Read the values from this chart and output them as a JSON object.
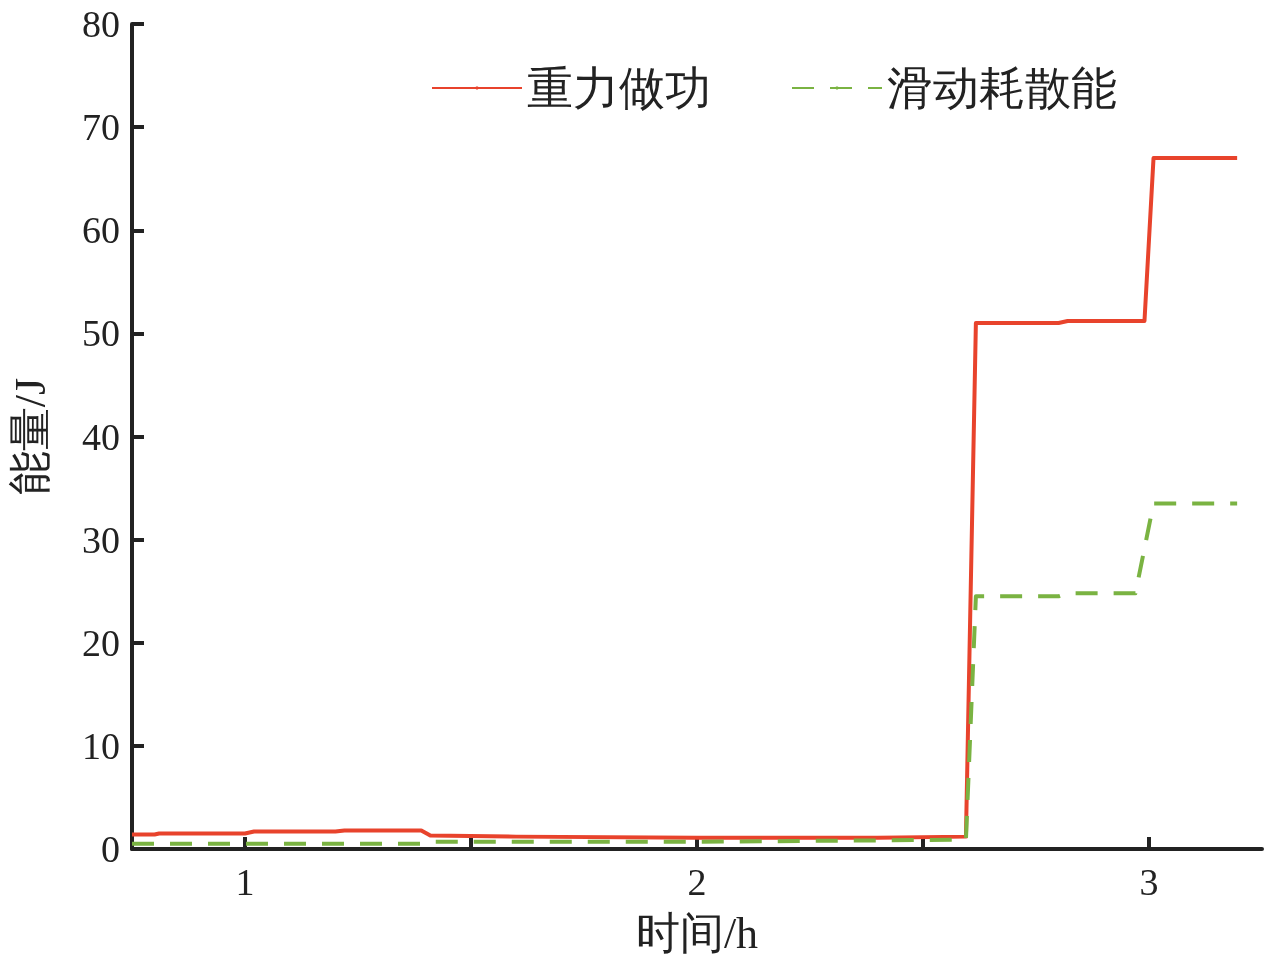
{
  "chart_data": {
    "type": "line",
    "xlabel": "时间/h",
    "ylabel": "能量/J",
    "xlim": [
      0.75,
      3.25
    ],
    "xticks": [
      1,
      {
        "value": 1.5,
        "label": null
      },
      2,
      {
        "value": 2.5,
        "label": null
      },
      3
    ],
    "ylim": [
      0,
      80
    ],
    "yticks": [
      0,
      10,
      20,
      30,
      40,
      50,
      60,
      70,
      80
    ],
    "grid": false,
    "legend": "top right",
    "marker": "none",
    "series": [
      {
        "name": "重力做功",
        "color": "#e8432c",
        "line_style": "solid",
        "x": [
          0.75,
          0.8,
          0.81,
          1.0,
          1.02,
          1.2,
          1.22,
          1.39,
          1.41,
          1.6,
          2.0,
          2.4,
          2.595,
          2.617,
          2.8,
          2.82,
          2.99,
          3.01,
          3.195
        ],
        "values": [
          1.4,
          1.4,
          1.5,
          1.5,
          1.7,
          1.7,
          1.8,
          1.8,
          1.3,
          1.2,
          1.1,
          1.1,
          1.2,
          51,
          51,
          51.2,
          51.2,
          67,
          67
        ]
      },
      {
        "name": "滑动耗散能",
        "color": "#7ab342",
        "line_style": "dashed",
        "x": [
          0.75,
          1.39,
          1.41,
          2.0,
          2.595,
          2.617,
          2.8,
          2.82,
          2.97,
          3.01,
          3.195
        ],
        "values": [
          0.5,
          0.5,
          0.7,
          0.7,
          0.9,
          24.5,
          24.5,
          24.8,
          24.8,
          33.5,
          33.5
        ]
      }
    ]
  }
}
